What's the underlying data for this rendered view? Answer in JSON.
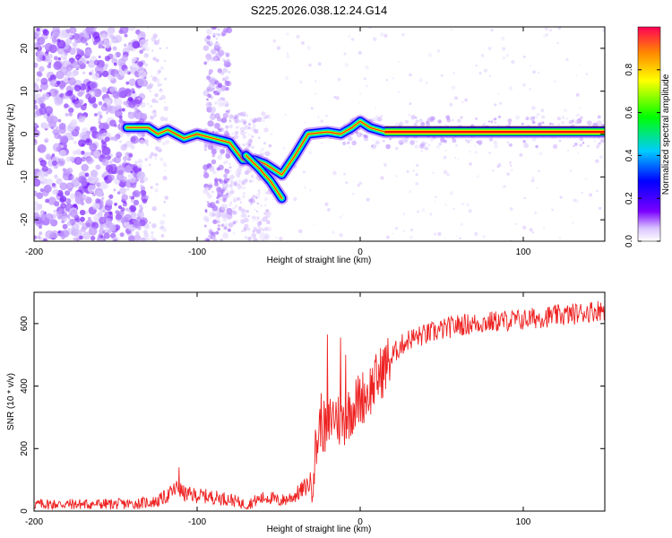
{
  "title": "S225.2026.038.12.24.G14",
  "colors": {
    "snr_line": "#ee2222",
    "trace_core": "#ff0000",
    "axis": "#000000"
  },
  "chart_data": [
    {
      "type": "heatmap",
      "name": "spectrogram",
      "xlabel": "Height of straight line (km)",
      "ylabel": "Frequency (Hz)",
      "xlim": [
        -200,
        150
      ],
      "ylim": [
        -25,
        25
      ],
      "xticks": [
        "-200",
        "-100",
        "0",
        "100"
      ],
      "yticks": [
        "20",
        "10",
        "0",
        "-10",
        "-20"
      ],
      "colorbar": {
        "label": "Normalized spectral amplitude",
        "range": [
          0,
          1
        ],
        "ticks": [
          "0.0",
          "0.2",
          "0.4",
          "0.6",
          "0.8"
        ]
      },
      "ridge": [
        {
          "x": -143,
          "y": 1.5
        },
        {
          "x": -130,
          "y": 1.5
        },
        {
          "x": -124,
          "y": 0
        },
        {
          "x": -118,
          "y": 1
        },
        {
          "x": -108,
          "y": -1
        },
        {
          "x": -100,
          "y": 0
        },
        {
          "x": -90,
          "y": -1
        },
        {
          "x": -80,
          "y": -2
        },
        {
          "x": -72,
          "y": -6
        },
        {
          "x": -65,
          "y": -6
        },
        {
          "x": -58,
          "y": -7
        },
        {
          "x": -48,
          "y": -9.5
        },
        {
          "x": -40,
          "y": -5
        },
        {
          "x": -32,
          "y": 0
        },
        {
          "x": -20,
          "y": 0.5
        },
        {
          "x": -12,
          "y": 0
        },
        {
          "x": -5,
          "y": 1.5
        },
        {
          "x": 0,
          "y": 3
        },
        {
          "x": 6,
          "y": 1.5
        },
        {
          "x": 15,
          "y": 0.5
        },
        {
          "x": 150,
          "y": 0.5
        }
      ],
      "ridge2": [
        {
          "x": -70,
          "y": -5
        },
        {
          "x": -62,
          "y": -8
        },
        {
          "x": -55,
          "y": -11
        },
        {
          "x": -48,
          "y": -15
        }
      ]
    },
    {
      "type": "line",
      "name": "snr",
      "xlabel": "Height of straight line (km)",
      "ylabel": "SNR (10 * v/v)",
      "xlim": [
        -200,
        150
      ],
      "ylim": [
        0,
        700
      ],
      "xticks": [
        "-200",
        "-100",
        "0",
        "100"
      ],
      "yticks": [
        "0",
        "200",
        "400",
        "600"
      ],
      "series": [
        {
          "name": "SNR",
          "x": [
            -200,
            -170,
            -140,
            -125,
            -118,
            -112,
            -108,
            -100,
            -90,
            -80,
            -70,
            -62,
            -56,
            -50,
            -45,
            -40,
            -35,
            -30,
            -27,
            -24,
            -22,
            -20,
            -18,
            -15,
            -12,
            -9,
            -5,
            0,
            5,
            10,
            15,
            20,
            25,
            30,
            40,
            50,
            60,
            70,
            80,
            90,
            100,
            110,
            120,
            130,
            140,
            150
          ],
          "values": [
            22,
            22,
            23,
            30,
            50,
            75,
            55,
            50,
            45,
            38,
            20,
            38,
            45,
            32,
            38,
            50,
            70,
            95,
            200,
            300,
            260,
            250,
            300,
            310,
            280,
            300,
            330,
            360,
            380,
            420,
            460,
            500,
            530,
            550,
            565,
            580,
            595,
            600,
            605,
            610,
            612,
            620,
            625,
            630,
            638,
            645
          ]
        }
      ],
      "spikes": [
        {
          "x": -111,
          "y": 140
        },
        {
          "x": -20,
          "y": 565
        },
        {
          "x": -12,
          "y": 555
        },
        {
          "x": -9,
          "y": 500
        }
      ]
    }
  ]
}
